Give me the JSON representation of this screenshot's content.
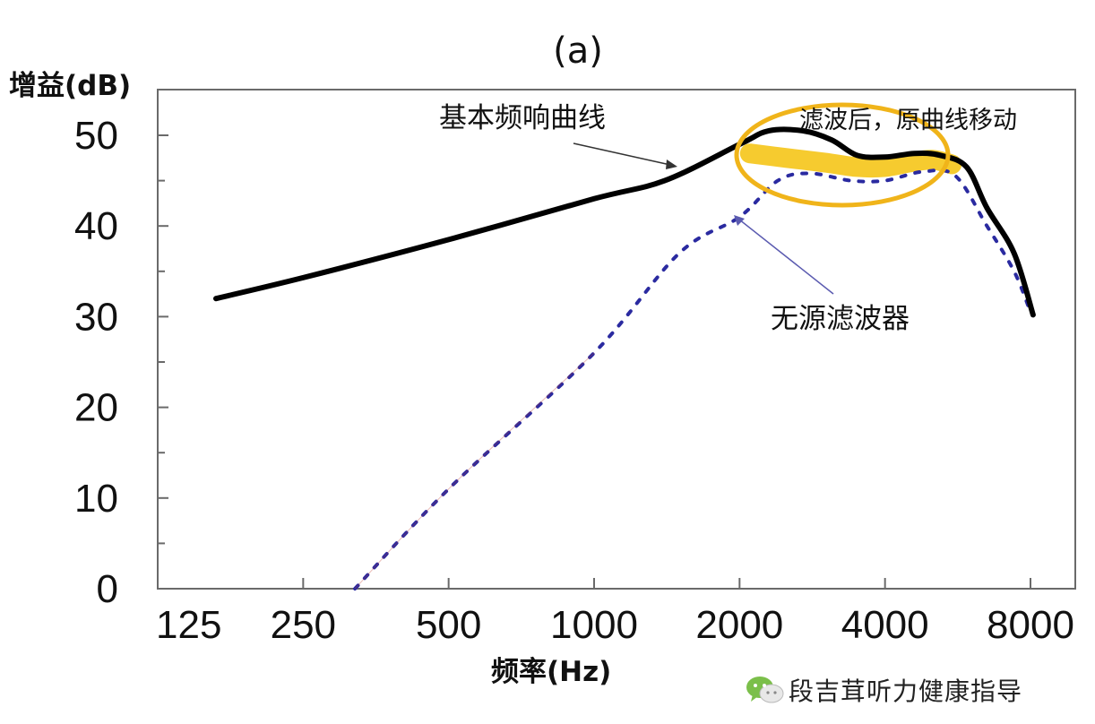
{
  "chart_data": {
    "type": "line",
    "title": "(a)",
    "xlabel": "频率(Hz)",
    "ylabel": "增益(dB)",
    "x_scale": "log2",
    "xlim": [
      125,
      12000
    ],
    "ylim": [
      0,
      55
    ],
    "x_ticks": [
      125,
      250,
      500,
      1000,
      2000,
      4000,
      8000
    ],
    "x_tick_labels": [
      "125",
      "250",
      "500",
      "1000",
      "2000",
      "4000",
      "8000"
    ],
    "y_ticks": [
      0,
      10,
      20,
      30,
      40,
      50
    ],
    "y_tick_labels": [
      "0",
      "10",
      "20",
      "30",
      "40",
      "50"
    ],
    "series": [
      {
        "name": "基本频响曲线",
        "style": "solid",
        "color": "#000000",
        "points": [
          [
            165,
            32
          ],
          [
            250,
            34.3
          ],
          [
            500,
            38.5
          ],
          [
            1000,
            43
          ],
          [
            1400,
            45
          ],
          [
            2000,
            49
          ],
          [
            2300,
            50.5
          ],
          [
            2700,
            50.5
          ],
          [
            3100,
            49.5
          ],
          [
            3500,
            47.8
          ],
          [
            4000,
            47.6
          ],
          [
            4600,
            48
          ],
          [
            5200,
            47.8
          ],
          [
            5900,
            46.5
          ],
          [
            6500,
            42
          ],
          [
            7400,
            37
          ],
          [
            8100,
            30.2
          ]
        ]
      },
      {
        "name": "无源滤波器",
        "style": "dotted",
        "color": "#2a2aa0",
        "points": [
          [
            320,
            0
          ],
          [
            500,
            11
          ],
          [
            1000,
            26
          ],
          [
            1500,
            37
          ],
          [
            2000,
            41
          ],
          [
            2400,
            45
          ],
          [
            2800,
            45.8
          ],
          [
            3400,
            45
          ],
          [
            4000,
            45
          ],
          [
            4800,
            46
          ],
          [
            5600,
            45.5
          ],
          [
            6500,
            40
          ],
          [
            7400,
            35
          ],
          [
            8000,
            30.5
          ]
        ]
      },
      {
        "name": "滤波后，原曲线移动",
        "style": "band",
        "color": "#f5c518",
        "points": [
          [
            2100,
            48
          ],
          [
            2500,
            47.5
          ],
          [
            3000,
            47
          ],
          [
            3500,
            46.5
          ],
          [
            4000,
            46.5
          ],
          [
            4500,
            47
          ],
          [
            5000,
            47.3
          ],
          [
            5500,
            46.8
          ]
        ]
      }
    ],
    "annotations": [
      {
        "text": "基本频响曲线",
        "points_to": [
          1800,
          47
        ]
      },
      {
        "text": "滤波后，原曲线移动",
        "points_to": [
          3500,
          48
        ]
      },
      {
        "text": "无源滤波器",
        "points_to": [
          2000,
          41
        ]
      }
    ],
    "grid": false
  },
  "watermark": {
    "icon": "wechat-icon",
    "text": "段吉茸听力健康指导"
  }
}
